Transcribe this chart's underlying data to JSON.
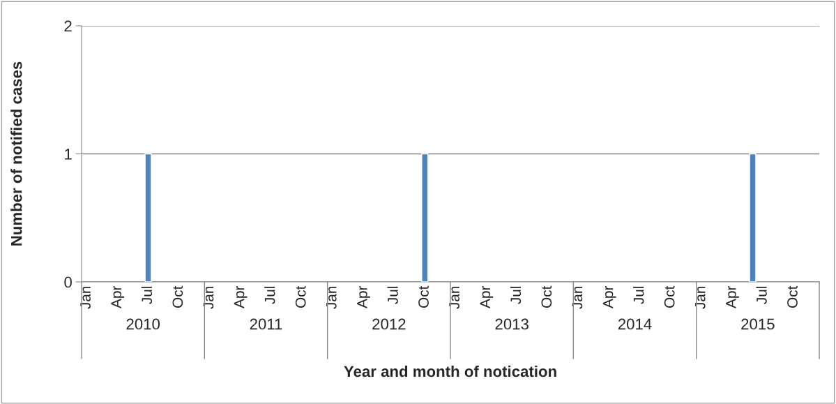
{
  "chart_data": {
    "type": "bar",
    "ylabel": "Number of notified cases",
    "xlabel": "Year and month of notication",
    "categories": [
      "Jan",
      null,
      null,
      "Apr",
      null,
      null,
      "Jul",
      null,
      null,
      "Oct",
      null,
      null,
      "Jan",
      null,
      null,
      "Apr",
      null,
      null,
      "Jul",
      null,
      null,
      "Oct",
      null,
      null,
      "Jan",
      null,
      null,
      "Apr",
      null,
      null,
      "Jul",
      null,
      null,
      "Oct",
      null,
      null,
      "Jan",
      null,
      null,
      "Apr",
      null,
      null,
      "Jul",
      null,
      null,
      "Oct",
      null,
      null,
      "Jan",
      null,
      null,
      "Apr",
      null,
      null,
      "Jul",
      null,
      null,
      "Oct",
      null,
      null,
      "Jan",
      null,
      null,
      "Apr",
      null,
      null,
      "Jul",
      null,
      null,
      "Oct",
      null,
      null
    ],
    "values": [
      0,
      0,
      0,
      0,
      0,
      0,
      1,
      0,
      0,
      0,
      0,
      0,
      0,
      0,
      0,
      0,
      0,
      0,
      0,
      0,
      0,
      0,
      0,
      0,
      0,
      0,
      0,
      0,
      0,
      0,
      0,
      0,
      0,
      1,
      0,
      0,
      0,
      0,
      0,
      0,
      0,
      0,
      0,
      0,
      0,
      0,
      0,
      0,
      0,
      0,
      0,
      0,
      0,
      0,
      0,
      0,
      0,
      0,
      0,
      0,
      0,
      0,
      0,
      0,
      0,
      1,
      0,
      0,
      0,
      0,
      0,
      0
    ],
    "color": "#4f81bd",
    "annotations": [
      "2010",
      "2011",
      "2012",
      "2013",
      "2014",
      "2015"
    ],
    "ylim": [
      0,
      2
    ],
    "yticks": [
      0,
      1,
      2
    ],
    "grid": "y",
    "legend": false
  }
}
